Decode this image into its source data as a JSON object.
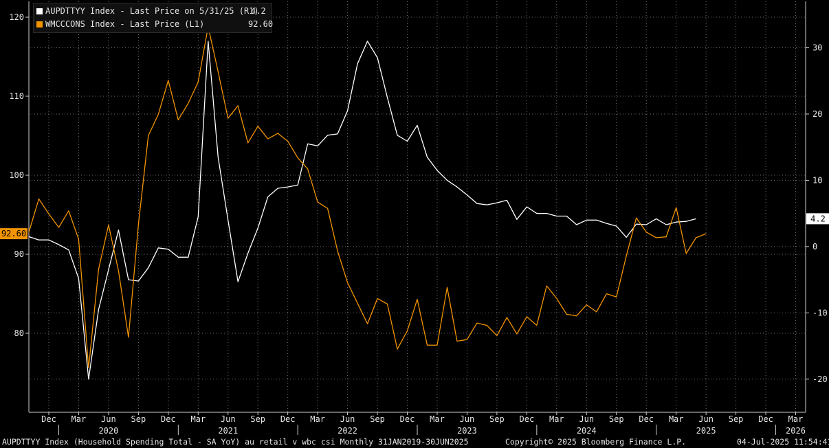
{
  "legend": {
    "series1_label": "AUPDTTYY Index - Last Price on 5/31/25 (R1)",
    "series1_value": "4.2",
    "series2_label": "WMCCCONS Index - Last Price (L1)",
    "series2_value": "92.60"
  },
  "footer": {
    "description": "AUPDTTYY Index (Household Spending Total - SA YoY) au retail v wbc csi  Monthly 31JAN2019-30JUN2025",
    "copyright": "Copyright© 2025 Bloomberg Finance L.P.",
    "timestamp": "04-Jul-2025 11:54:41"
  },
  "colors": {
    "background": "#000000",
    "series1": "#ffffff",
    "series2": "#f29300",
    "grid": "#6e6e6e"
  },
  "chart_data": {
    "type": "line",
    "x_start": "2019-10",
    "x_end": "2026-04",
    "x_tick_labels": [
      {
        "date": "2019-12",
        "label": "Dec"
      },
      {
        "date": "2020-03",
        "label": "Mar"
      },
      {
        "date": "2020-06",
        "label": "Jun"
      },
      {
        "date": "2020-09",
        "label": "Sep"
      },
      {
        "date": "2020-12",
        "label": "Dec"
      },
      {
        "date": "2021-03",
        "label": "Mar"
      },
      {
        "date": "2021-06",
        "label": "Jun"
      },
      {
        "date": "2021-09",
        "label": "Sep"
      },
      {
        "date": "2021-12",
        "label": "Dec"
      },
      {
        "date": "2022-03",
        "label": "Mar"
      },
      {
        "date": "2022-06",
        "label": "Jun"
      },
      {
        "date": "2022-09",
        "label": "Sep"
      },
      {
        "date": "2022-12",
        "label": "Dec"
      },
      {
        "date": "2023-03",
        "label": "Mar"
      },
      {
        "date": "2023-06",
        "label": "Jun"
      },
      {
        "date": "2023-09",
        "label": "Sep"
      },
      {
        "date": "2023-12",
        "label": "Dec"
      },
      {
        "date": "2024-03",
        "label": "Mar"
      },
      {
        "date": "2024-06",
        "label": "Jun"
      },
      {
        "date": "2024-09",
        "label": "Sep"
      },
      {
        "date": "2024-12",
        "label": "Dec"
      },
      {
        "date": "2025-03",
        "label": "Mar"
      },
      {
        "date": "2025-06",
        "label": "Jun"
      },
      {
        "date": "2025-09",
        "label": "Sep"
      },
      {
        "date": "2025-12",
        "label": "Dec"
      },
      {
        "date": "2026-03",
        "label": "Mar"
      }
    ],
    "year_labels": [
      {
        "date": "2020-06",
        "label": "2020"
      },
      {
        "date": "2021-06",
        "label": "2021"
      },
      {
        "date": "2022-06",
        "label": "2022"
      },
      {
        "date": "2023-06",
        "label": "2023"
      },
      {
        "date": "2024-06",
        "label": "2024"
      },
      {
        "date": "2025-06",
        "label": "2025"
      },
      {
        "date": "2026-03",
        "label": "2026"
      }
    ],
    "left_axis": {
      "range": [
        70,
        122
      ],
      "ticks": [
        80,
        90,
        100,
        110,
        120
      ]
    },
    "right_axis": {
      "range": [
        -25,
        37
      ],
      "ticks": [
        -20,
        -10,
        0,
        10,
        20,
        30
      ]
    },
    "grid": true,
    "series": [
      {
        "name": "AUPDTTYY Index",
        "axis": "right",
        "color": "#ffffff",
        "points": [
          [
            "2019-10",
            1.5
          ],
          [
            "2019-11",
            1.0
          ],
          [
            "2019-12",
            1.0
          ],
          [
            "2020-01",
            0.3
          ],
          [
            "2020-02",
            -0.5
          ],
          [
            "2020-03",
            -4.8
          ],
          [
            "2020-04",
            -20.0
          ],
          [
            "2020-05",
            -9.5
          ],
          [
            "2020-06",
            -3.5
          ],
          [
            "2020-07",
            2.5
          ],
          [
            "2020-08",
            -5.0
          ],
          [
            "2020-09",
            -5.2
          ],
          [
            "2020-10",
            -3.2
          ],
          [
            "2020-11",
            -0.2
          ],
          [
            "2020-12",
            -0.4
          ],
          [
            "2021-01",
            -1.6
          ],
          [
            "2021-02",
            -1.6
          ],
          [
            "2021-03",
            4.5
          ],
          [
            "2021-04",
            31.0
          ],
          [
            "2021-05",
            13.5
          ],
          [
            "2021-06",
            4.0
          ],
          [
            "2021-07",
            -5.3
          ],
          [
            "2021-08",
            -1.0
          ],
          [
            "2021-09",
            2.8
          ],
          [
            "2021-10",
            7.5
          ],
          [
            "2021-11",
            8.8
          ],
          [
            "2021-12",
            9.0
          ],
          [
            "2022-01",
            9.3
          ],
          [
            "2022-02",
            15.5
          ],
          [
            "2022-03",
            15.2
          ],
          [
            "2022-04",
            16.8
          ],
          [
            "2022-05",
            17.0
          ],
          [
            "2022-06",
            20.5
          ],
          [
            "2022-07",
            27.6
          ],
          [
            "2022-08",
            31.0
          ],
          [
            "2022-09",
            28.5
          ],
          [
            "2022-10",
            22.5
          ],
          [
            "2022-11",
            16.8
          ],
          [
            "2022-12",
            15.9
          ],
          [
            "2023-01",
            18.3
          ],
          [
            "2023-02",
            13.5
          ],
          [
            "2023-03",
            11.5
          ],
          [
            "2023-04",
            10.0
          ],
          [
            "2023-05",
            9.0
          ],
          [
            "2023-06",
            7.8
          ],
          [
            "2023-07",
            6.5
          ],
          [
            "2023-08",
            6.3
          ],
          [
            "2023-09",
            6.6
          ],
          [
            "2023-10",
            7.0
          ],
          [
            "2023-11",
            4.1
          ],
          [
            "2023-12",
            6.0
          ],
          [
            "2024-01",
            5.0
          ],
          [
            "2024-02",
            5.0
          ],
          [
            "2024-03",
            4.6
          ],
          [
            "2024-04",
            4.6
          ],
          [
            "2024-05",
            3.3
          ],
          [
            "2024-06",
            4.0
          ],
          [
            "2024-07",
            4.0
          ],
          [
            "2024-08",
            3.5
          ],
          [
            "2024-09",
            3.1
          ],
          [
            "2024-10",
            1.4
          ],
          [
            "2024-11",
            3.4
          ],
          [
            "2024-12",
            3.3
          ],
          [
            "2025-01",
            4.2
          ],
          [
            "2025-02",
            3.3
          ],
          [
            "2025-03",
            3.7
          ],
          [
            "2025-04",
            3.8
          ],
          [
            "2025-05",
            4.2
          ]
        ]
      },
      {
        "name": "WMCCCONS Index",
        "axis": "left",
        "color": "#f29300",
        "points": [
          [
            "2019-10",
            92.8
          ],
          [
            "2019-11",
            97.0
          ],
          [
            "2019-12",
            95.1
          ],
          [
            "2020-01",
            93.4
          ],
          [
            "2020-02",
            95.5
          ],
          [
            "2020-03",
            91.9
          ],
          [
            "2020-04",
            75.6
          ],
          [
            "2020-05",
            88.1
          ],
          [
            "2020-06",
            93.7
          ],
          [
            "2020-07",
            87.9
          ],
          [
            "2020-08",
            79.5
          ],
          [
            "2020-09",
            93.8
          ],
          [
            "2020-10",
            105.0
          ],
          [
            "2020-11",
            107.7
          ],
          [
            "2020-12",
            112.0
          ],
          [
            "2021-01",
            107.0
          ],
          [
            "2021-02",
            109.1
          ],
          [
            "2021-03",
            111.8
          ],
          [
            "2021-04",
            118.8
          ],
          [
            "2021-05",
            113.1
          ],
          [
            "2021-06",
            107.2
          ],
          [
            "2021-07",
            108.8
          ],
          [
            "2021-08",
            104.1
          ],
          [
            "2021-09",
            106.2
          ],
          [
            "2021-10",
            104.6
          ],
          [
            "2021-11",
            105.3
          ],
          [
            "2021-12",
            104.3
          ],
          [
            "2022-01",
            102.2
          ],
          [
            "2022-02",
            100.8
          ],
          [
            "2022-03",
            96.6
          ],
          [
            "2022-04",
            95.8
          ],
          [
            "2022-05",
            90.4
          ],
          [
            "2022-06",
            86.4
          ],
          [
            "2022-07",
            83.8
          ],
          [
            "2022-08",
            81.2
          ],
          [
            "2022-09",
            84.4
          ],
          [
            "2022-10",
            83.7
          ],
          [
            "2022-11",
            78.0
          ],
          [
            "2022-12",
            80.3
          ],
          [
            "2023-01",
            84.3
          ],
          [
            "2023-02",
            78.5
          ],
          [
            "2023-03",
            78.5
          ],
          [
            "2023-04",
            85.8
          ],
          [
            "2023-05",
            79.0
          ],
          [
            "2023-06",
            79.2
          ],
          [
            "2023-07",
            81.3
          ],
          [
            "2023-08",
            81.0
          ],
          [
            "2023-09",
            79.7
          ],
          [
            "2023-10",
            82.0
          ],
          [
            "2023-11",
            79.9
          ],
          [
            "2023-12",
            82.1
          ],
          [
            "2024-01",
            81.0
          ],
          [
            "2024-02",
            86.0
          ],
          [
            "2024-03",
            84.4
          ],
          [
            "2024-04",
            82.4
          ],
          [
            "2024-05",
            82.2
          ],
          [
            "2024-06",
            83.6
          ],
          [
            "2024-07",
            82.7
          ],
          [
            "2024-08",
            85.0
          ],
          [
            "2024-09",
            84.6
          ],
          [
            "2024-10",
            89.8
          ],
          [
            "2024-11",
            94.6
          ],
          [
            "2024-12",
            92.8
          ],
          [
            "2025-01",
            92.1
          ],
          [
            "2025-02",
            92.2
          ],
          [
            "2025-03",
            95.9
          ],
          [
            "2025-04",
            90.1
          ],
          [
            "2025-05",
            92.1
          ],
          [
            "2025-06",
            92.6
          ]
        ]
      }
    ],
    "last_value_tags": [
      {
        "series": "AUPDTTYY Index",
        "axis": "right",
        "value": 4.2,
        "label": "4.2"
      },
      {
        "series": "WMCCCONS Index",
        "axis": "left",
        "value": 92.6,
        "label": "92.60"
      }
    ]
  }
}
